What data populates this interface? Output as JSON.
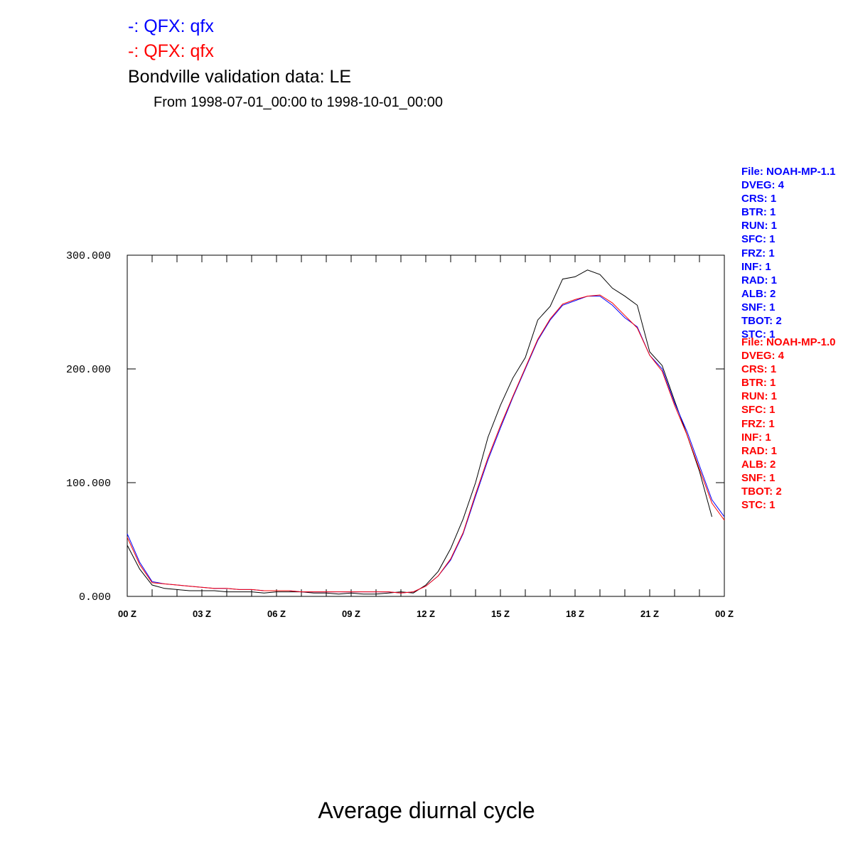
{
  "legend": {
    "blue": "-: QFX: qfx",
    "red": "-: QFX: qfx"
  },
  "title": "Bondville validation data: LE",
  "subtitle": "From 1998-07-01_00:00 to 1998-10-01_00:00",
  "footer": "Average diurnal cycle",
  "meta_blue": [
    "File: NOAH-MP-1.1",
    "DVEG: 4",
    "CRS: 1",
    "BTR: 1",
    "RUN: 1",
    "SFC: 1",
    "FRZ: 1",
    "INF: 1",
    "RAD: 1",
    "ALB: 2",
    "SNF: 1",
    "TBOT: 2",
    "STC: 1"
  ],
  "meta_red": [
    "File: NOAH-MP-1.0",
    "DVEG: 4",
    "CRS: 1",
    "BTR: 1",
    "RUN: 1",
    "SFC: 1",
    "FRZ: 1",
    "INF: 1",
    "RAD: 1",
    "ALB: 2",
    "SNF: 1",
    "TBOT: 2",
    "STC: 1"
  ],
  "colors": {
    "blue": "#0000ff",
    "red": "#ff0000",
    "black": "#000000"
  },
  "chart_data": {
    "type": "line",
    "xlim": [
      0,
      24
    ],
    "ylim": [
      0,
      300
    ],
    "x_ticks": [
      0,
      3,
      6,
      9,
      12,
      15,
      18,
      21,
      24
    ],
    "x_tick_labels": [
      "00 Z",
      "03 Z",
      "06 Z",
      "09 Z",
      "12 Z",
      "15 Z",
      "18 Z",
      "21 Z",
      "00 Z"
    ],
    "y_ticks": [
      0,
      100,
      200,
      300
    ],
    "y_tick_labels": [
      "0.000",
      "100.000",
      "200.000",
      "300.000"
    ],
    "series": [
      {
        "color": "#000000",
        "x": [
          0,
          0.5,
          1,
          1.5,
          2,
          2.5,
          3,
          3.5,
          4,
          4.5,
          5,
          5.5,
          6,
          6.5,
          7,
          7.5,
          8,
          8.5,
          9,
          9.5,
          10,
          10.5,
          11,
          11.5,
          12,
          12.5,
          13,
          13.5,
          14,
          14.5,
          15,
          15.5,
          16,
          16.5,
          17,
          17.5,
          18,
          18.5,
          19,
          19.5,
          20,
          20.5,
          21,
          21.5,
          22,
          22.5,
          23,
          23.5
        ],
        "y": [
          45,
          24,
          10,
          7,
          6,
          5,
          5,
          5,
          4,
          4,
          4,
          3,
          4,
          4,
          4,
          3,
          3,
          2,
          3,
          2,
          2,
          3,
          4,
          3,
          10,
          22,
          42,
          68,
          100,
          140,
          168,
          192,
          210,
          243,
          255,
          279,
          281,
          287,
          283,
          271,
          264,
          256,
          215,
          203,
          172,
          142,
          110,
          70
        ]
      },
      {
        "color": "#0000ff",
        "x": [
          0,
          0.5,
          1,
          1.5,
          2,
          2.5,
          3,
          3.5,
          4,
          4.5,
          5,
          5.5,
          6,
          6.5,
          7,
          7.5,
          8,
          8.5,
          9,
          9.5,
          10,
          10.5,
          11,
          11.5,
          12,
          12.5,
          13,
          13.5,
          14,
          14.5,
          15,
          15.5,
          16,
          16.5,
          17,
          17.5,
          18,
          18.5,
          19,
          19.5,
          20,
          20.5,
          21,
          21.5,
          22,
          22.5,
          23,
          23.5,
          24
        ],
        "y": [
          55,
          30,
          13,
          11,
          10,
          9,
          8,
          7,
          7,
          6,
          6,
          5,
          5,
          5,
          4,
          4,
          4,
          4,
          4,
          4,
          4,
          4,
          3,
          4,
          9,
          18,
          32,
          55,
          88,
          120,
          148,
          175,
          200,
          225,
          243,
          256,
          260,
          264,
          264,
          256,
          245,
          237,
          212,
          200,
          170,
          145,
          115,
          85,
          70
        ]
      },
      {
        "color": "#ff0000",
        "x": [
          0,
          0.5,
          1,
          1.5,
          2,
          2.5,
          3,
          3.5,
          4,
          4.5,
          5,
          5.5,
          6,
          6.5,
          7,
          7.5,
          8,
          8.5,
          9,
          9.5,
          10,
          10.5,
          11,
          11.5,
          12,
          12.5,
          13,
          13.5,
          14,
          14.5,
          15,
          15.5,
          16,
          16.5,
          17,
          17.5,
          18,
          18.5,
          19,
          19.5,
          20,
          20.5,
          21,
          21.5,
          22,
          22.5,
          23,
          23.5,
          24
        ],
        "y": [
          52,
          28,
          12,
          11,
          10,
          9,
          8,
          7,
          7,
          6,
          6,
          5,
          5,
          5,
          4,
          4,
          4,
          4,
          4,
          4,
          4,
          4,
          3,
          4,
          9,
          18,
          33,
          56,
          90,
          122,
          150,
          176,
          201,
          226,
          244,
          257,
          261,
          264,
          265,
          258,
          247,
          236,
          212,
          198,
          168,
          142,
          112,
          82,
          67
        ]
      }
    ]
  }
}
